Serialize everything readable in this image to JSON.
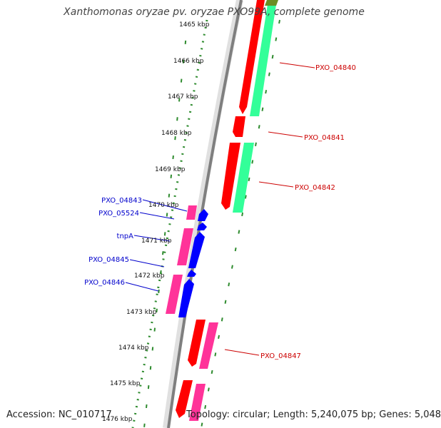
{
  "title": "Xanthomonas oryzae pv. oryzae PXO99A, complete genome",
  "accession_text": "Accession: NC_010717",
  "summary_text": "Topology: circular; Length: 5,240,075 bp; Genes: 5,048",
  "colors": {
    "backbone": "#7f7f7f",
    "tick_ring": "#2e8b2e",
    "forward_gene": "#ff0000",
    "forward_cds": "#33ff99",
    "reverse_gene": "#ff3399",
    "reverse_cds": "#0000ff",
    "label_forward": "#cc0000",
    "label_reverse": "#0000cc"
  },
  "ticks": [
    {
      "label": "1465 kbp"
    },
    {
      "label": "1466 kbp"
    },
    {
      "label": "1467 kbp"
    },
    {
      "label": "1468 kbp"
    },
    {
      "label": "1469 kbp"
    },
    {
      "label": "1470 kbp"
    },
    {
      "label": "1471 kbp"
    },
    {
      "label": "1472 kbp"
    },
    {
      "label": "1473 kbp"
    },
    {
      "label": "1474 kbp"
    },
    {
      "label": "1475 kbp"
    },
    {
      "label": "1476 kbp"
    }
  ],
  "gene_labels_forward": [
    "PXO_04840",
    "PXO_04841",
    "PXO_04842",
    "PXO_04847"
  ],
  "gene_labels_reverse": [
    "PXO_04843",
    "PXO_05524",
    "tnpA",
    "PXO_04845",
    "PXO_04846"
  ]
}
